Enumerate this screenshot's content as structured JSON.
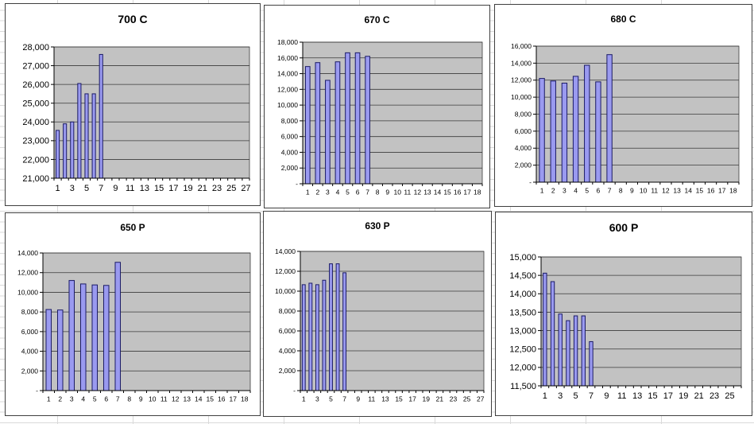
{
  "style": {
    "bar_fill": "#9a9af0",
    "bar_border": "#1a1a66",
    "plot_bg": "#c2c2c2",
    "grid_line": "#3a3a3a",
    "axis_line": "#000000",
    "chart_border": "#3f3f3f",
    "sheet_grid": "#d9d9d9",
    "sheet_bg": "#ffffff"
  },
  "chart_data": [
    {
      "type": "bar",
      "title": "700 C",
      "xlabel": "",
      "ylabel": "",
      "ylim": [
        21000,
        28000
      ],
      "ystep": 1000,
      "y_tick_labels": [
        "21,000",
        "22,000",
        "23,000",
        "24,000",
        "25,000",
        "26,000",
        "27,000",
        "28,000"
      ],
      "n_categories": 27,
      "x_tick_labels": [
        "1",
        "3",
        "5",
        "7",
        "9",
        "11",
        "13",
        "15",
        "17",
        "19",
        "21",
        "23",
        "25",
        "27"
      ],
      "x": [
        1,
        2,
        3,
        4,
        5,
        6,
        7
      ],
      "values": [
        23550,
        23900,
        24000,
        26050,
        25500,
        25500,
        27600
      ],
      "grid": true,
      "legend": "none"
    },
    {
      "type": "bar",
      "title": "670 C",
      "xlabel": "",
      "ylabel": "",
      "ylim": [
        0,
        18000
      ],
      "ystep": 2000,
      "y_tick_labels": [
        "-",
        "2,000",
        "4,000",
        "6,000",
        "8,000",
        "10,000",
        "12,000",
        "14,000",
        "16,000",
        "18,000"
      ],
      "n_categories": 18,
      "x_tick_labels": [
        "1",
        "2",
        "3",
        "4",
        "5",
        "6",
        "7",
        "8",
        "9",
        "10",
        "11",
        "12",
        "13",
        "14",
        "15",
        "16",
        "17",
        "18"
      ],
      "x": [
        1,
        2,
        3,
        4,
        5,
        6,
        7
      ],
      "values": [
        14900,
        15400,
        13150,
        15500,
        16650,
        16650,
        16200
      ],
      "grid": true,
      "legend": "none"
    },
    {
      "type": "bar",
      "title": "680 C",
      "xlabel": "",
      "ylabel": "",
      "ylim": [
        0,
        16000
      ],
      "ystep": 2000,
      "y_tick_labels": [
        "-",
        "2,000",
        "4,000",
        "6,000",
        "8,000",
        "10,000",
        "12,000",
        "14,000",
        "16,000"
      ],
      "n_categories": 18,
      "x_tick_labels": [
        "1",
        "2",
        "3",
        "4",
        "5",
        "6",
        "7",
        "8",
        "9",
        "10",
        "11",
        "12",
        "13",
        "14",
        "15",
        "16",
        "17",
        "18"
      ],
      "x": [
        1,
        2,
        3,
        4,
        5,
        6,
        7
      ],
      "values": [
        12200,
        11900,
        11650,
        12450,
        13750,
        11800,
        15000
      ],
      "grid": true,
      "legend": "none"
    },
    {
      "type": "bar",
      "title": "650 P",
      "xlabel": "",
      "ylabel": "",
      "ylim": [
        0,
        14000
      ],
      "ystep": 2000,
      "y_tick_labels": [
        "-",
        "2,000",
        "4,000",
        "6,000",
        "8,000",
        "10,000",
        "12,000",
        "14,000"
      ],
      "n_categories": 18,
      "x_tick_labels": [
        "1",
        "2",
        "3",
        "4",
        "5",
        "6",
        "7",
        "8",
        "9",
        "10",
        "11",
        "12",
        "13",
        "14",
        "15",
        "16",
        "17",
        "18"
      ],
      "x": [
        1,
        2,
        3,
        4,
        5,
        6,
        7
      ],
      "values": [
        8250,
        8200,
        11200,
        10850,
        10750,
        10700,
        13050
      ],
      "grid": true,
      "legend": "none"
    },
    {
      "type": "bar",
      "title": "630 P",
      "xlabel": "",
      "ylabel": "",
      "ylim": [
        0,
        14000
      ],
      "ystep": 2000,
      "y_tick_labels": [
        "-",
        "2,000",
        "4,000",
        "6,000",
        "8,000",
        "10,000",
        "12,000",
        "14,000"
      ],
      "n_categories": 27,
      "x_tick_labels": [
        "1",
        "3",
        "5",
        "7",
        "9",
        "11",
        "13",
        "15",
        "17",
        "19",
        "21",
        "23",
        "25",
        "27"
      ],
      "x": [
        1,
        2,
        3,
        4,
        5,
        6,
        7
      ],
      "values": [
        10650,
        10800,
        10650,
        11100,
        12750,
        12750,
        11850
      ],
      "grid": true,
      "legend": "none"
    },
    {
      "type": "bar",
      "title": "600 P",
      "xlabel": "",
      "ylabel": "",
      "ylim": [
        11500,
        15000
      ],
      "ystep": 500,
      "y_tick_labels": [
        "11,500",
        "12,000",
        "12,500",
        "13,000",
        "13,500",
        "14,000",
        "14,500",
        "15,000"
      ],
      "n_categories": 26,
      "x_tick_labels": [
        "1",
        "3",
        "5",
        "7",
        "9",
        "11",
        "13",
        "15",
        "17",
        "19",
        "21",
        "23",
        "25"
      ],
      "x": [
        1,
        2,
        3,
        4,
        5,
        6,
        7
      ],
      "values": [
        14560,
        14330,
        13450,
        13270,
        13400,
        13400,
        12700
      ],
      "grid": true,
      "legend": "none"
    }
  ]
}
